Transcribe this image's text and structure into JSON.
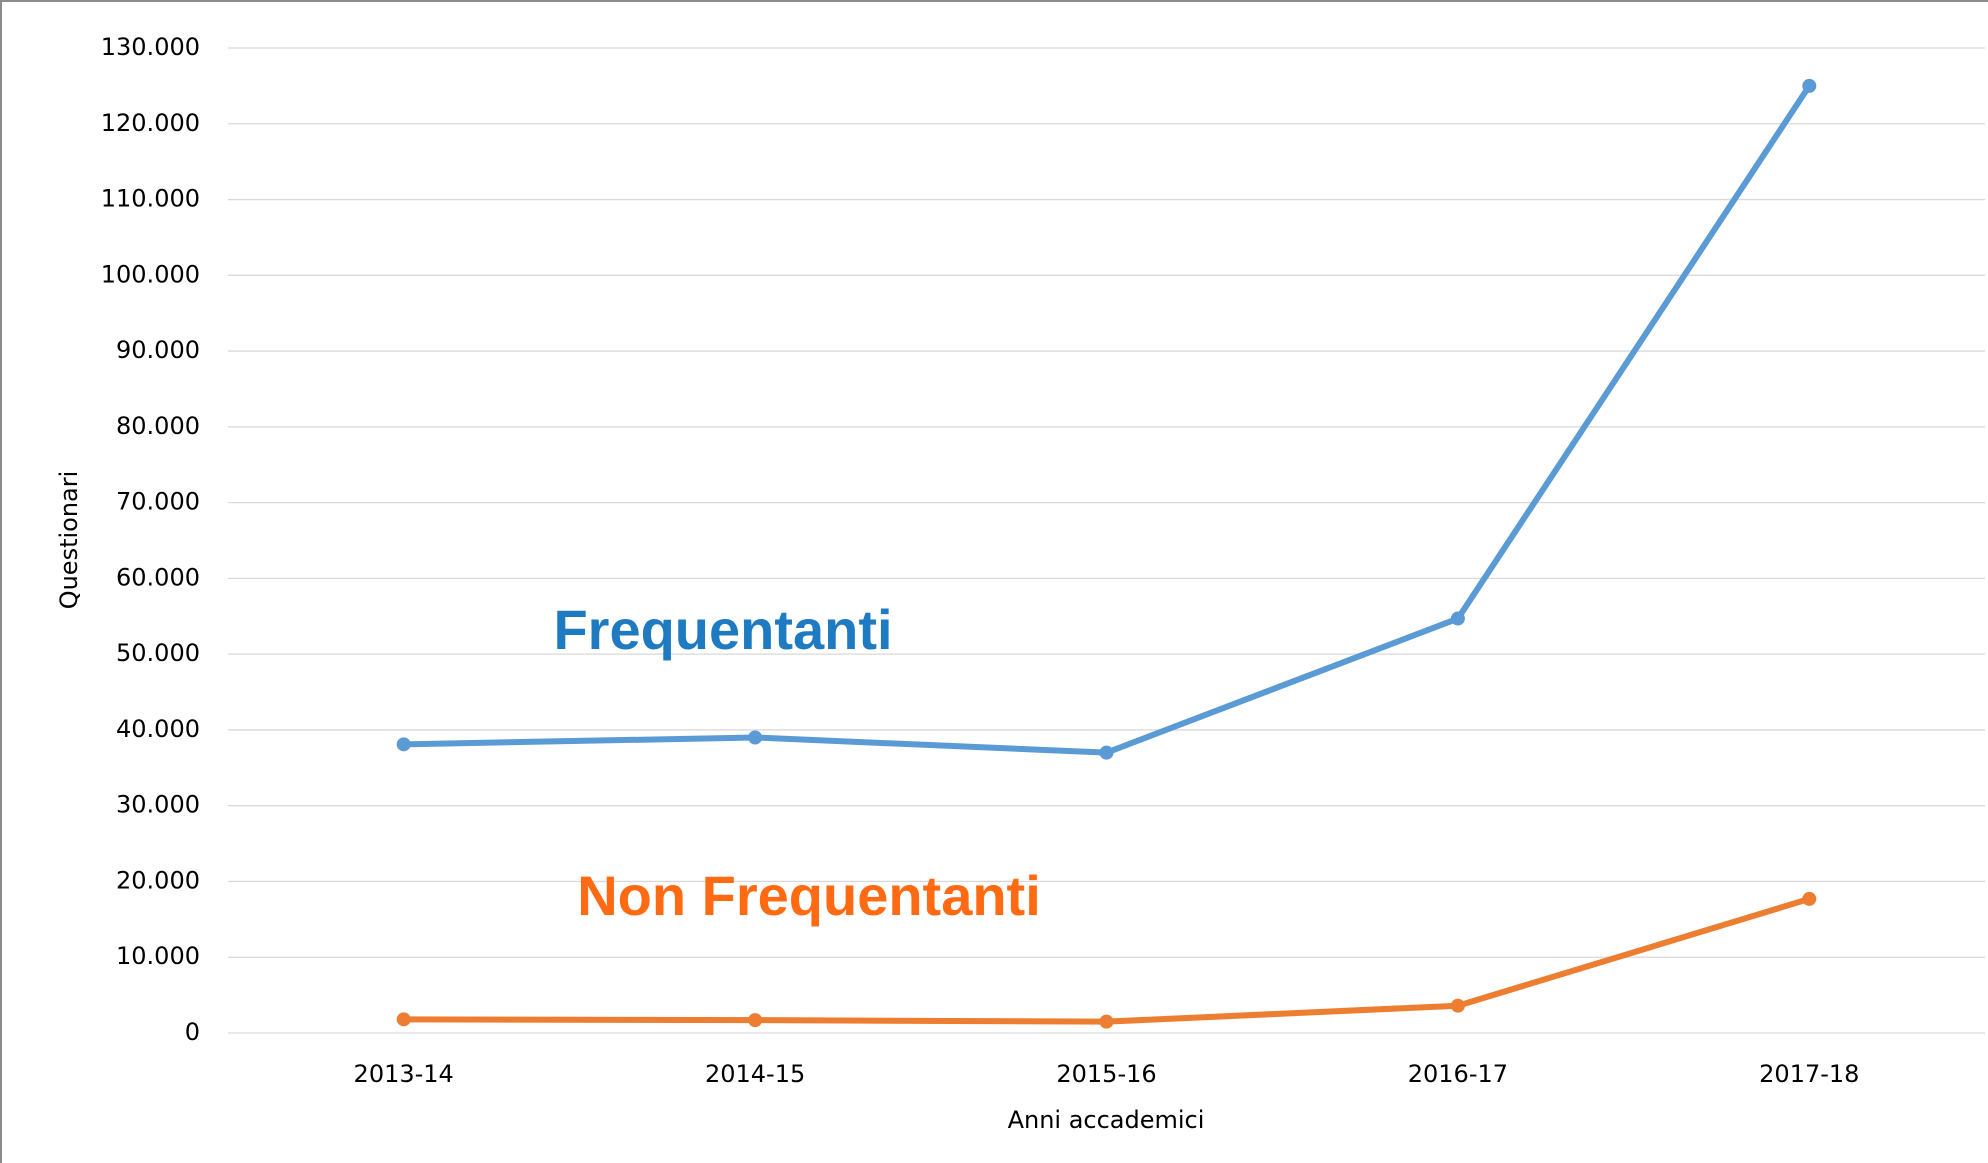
{
  "chart_data": {
    "type": "line",
    "x_label": "Anni accademici",
    "y_label": "Questionari",
    "categories": [
      "2013-14",
      "2014-15",
      "2015-16",
      "2016-17",
      "2017-18"
    ],
    "series": [
      {
        "name": "Frequentanti",
        "color": "#5b9bd5",
        "values": [
          38100,
          39000,
          37000,
          54700,
          125000
        ]
      },
      {
        "name": "Non Frequentanti",
        "color": "#ed7d31",
        "values": [
          1800,
          1700,
          1500,
          3600,
          17700
        ]
      }
    ],
    "ylim": [
      0,
      130000
    ],
    "yticks": [
      0,
      {
        "value": 10000,
        "label": "10.000"
      },
      {
        "value": 20000,
        "label": "20.000"
      },
      {
        "value": 30000,
        "label": "30.000"
      },
      {
        "value": 40000,
        "label": "40.000"
      },
      {
        "value": 50000,
        "label": "50.000"
      },
      {
        "value": 60000,
        "label": "60.000"
      },
      {
        "value": 70000,
        "label": "70.000"
      },
      {
        "value": 80000,
        "label": "80.000"
      },
      {
        "value": 90000,
        "label": "90.000"
      },
      {
        "value": 100000,
        "label": "100.000"
      },
      {
        "value": 110000,
        "label": "110.000"
      },
      {
        "value": 120000,
        "label": "120.000"
      },
      {
        "value": 130000,
        "label": "130.000"
      }
    ],
    "grid": true
  }
}
